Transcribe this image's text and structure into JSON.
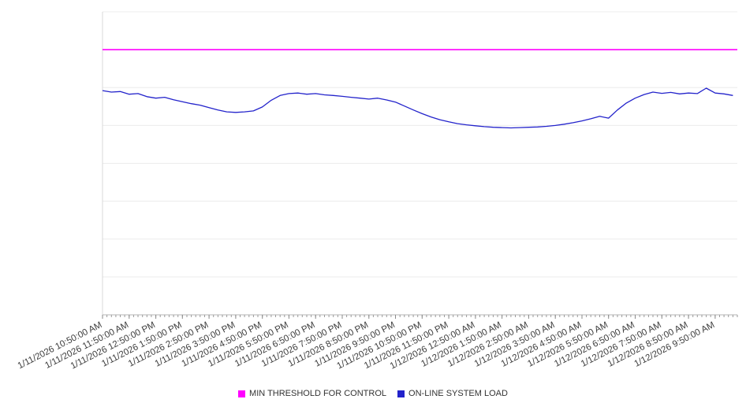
{
  "legend": {
    "position": "bottom",
    "items": [
      {
        "label": "MIN THRESHOLD FOR CONTROL",
        "color": "#ff00ff"
      },
      {
        "label": "ON-LINE SYSTEM LOAD",
        "color": "#2323cb"
      }
    ]
  },
  "chart_data": {
    "type": "line",
    "title": "",
    "xlabel": "",
    "ylabel": "",
    "grid": "horizontal",
    "legend_position": "bottom",
    "x_axis": {
      "range_minutes": [
        0,
        1430
      ],
      "minor_tick_interval_minutes": 10,
      "ticks": [
        {
          "minute": 0,
          "label": "1/11/2026 10:50:00 AM"
        },
        {
          "minute": 60,
          "label": "1/11/2026 11:50:00 AM"
        },
        {
          "minute": 120,
          "label": "1/11/2026 12:50:00 PM"
        },
        {
          "minute": 180,
          "label": "1/11/2026 1:50:00 PM"
        },
        {
          "minute": 240,
          "label": "1/11/2026 2:50:00 PM"
        },
        {
          "minute": 300,
          "label": "1/11/2026 3:50:00 PM"
        },
        {
          "minute": 360,
          "label": "1/11/2026 4:50:00 PM"
        },
        {
          "minute": 420,
          "label": "1/11/2026 5:50:00 PM"
        },
        {
          "minute": 480,
          "label": "1/11/2026 6:50:00 PM"
        },
        {
          "minute": 540,
          "label": "1/11/2026 7:50:00 PM"
        },
        {
          "minute": 600,
          "label": "1/11/2026 8:50:00 PM"
        },
        {
          "minute": 660,
          "label": "1/11/2026 9:50:00 PM"
        },
        {
          "minute": 720,
          "label": "1/11/2026 10:50:00 PM"
        },
        {
          "minute": 780,
          "label": "1/11/2026 11:50:00 PM"
        },
        {
          "minute": 840,
          "label": "1/12/2026 12:50:00 AM"
        },
        {
          "minute": 900,
          "label": "1/12/2026 1:50:00 AM"
        },
        {
          "minute": 960,
          "label": "1/12/2026 2:50:00 AM"
        },
        {
          "minute": 1020,
          "label": "1/12/2026 3:50:00 AM"
        },
        {
          "minute": 1080,
          "label": "1/12/2026 4:50:00 AM"
        },
        {
          "minute": 1140,
          "label": "1/12/2026 5:50:00 AM"
        },
        {
          "minute": 1200,
          "label": "1/12/2026 6:50:00 AM"
        },
        {
          "minute": 1260,
          "label": "1/12/2026 7:50:00 AM"
        },
        {
          "minute": 1320,
          "label": "1/12/2026 8:50:00 AM"
        },
        {
          "minute": 1380,
          "label": "1/12/2026 9:50:00 AM"
        }
      ]
    },
    "y_axis": {
      "ylim": [
        0,
        100
      ],
      "gridline_interval": 12.5,
      "tick_labels_visible": false
    },
    "series": [
      {
        "name": "MIN THRESHOLD FOR CONTROL",
        "color": "#ff00ff",
        "type": "constant",
        "value": 87.5
      },
      {
        "name": "ON-LINE SYSTEM LOAD",
        "color": "#2323cb",
        "type": "sampled",
        "x_start_minute": 0,
        "x_step_minutes": 20,
        "values": [
          74.0,
          73.5,
          73.7,
          72.8,
          73.0,
          72.0,
          71.5,
          71.8,
          71.0,
          70.3,
          69.7,
          69.2,
          68.4,
          67.6,
          67.0,
          66.8,
          67.0,
          67.3,
          68.6,
          70.8,
          72.4,
          73.0,
          73.2,
          72.8,
          73.0,
          72.6,
          72.4,
          72.1,
          71.8,
          71.5,
          71.2,
          71.5,
          70.9,
          70.2,
          68.9,
          67.6,
          66.4,
          65.3,
          64.4,
          63.7,
          63.1,
          62.7,
          62.4,
          62.1,
          61.9,
          61.8,
          61.7,
          61.8,
          61.9,
          62.0,
          62.2,
          62.5,
          62.9,
          63.4,
          64.0,
          64.7,
          65.5,
          64.9,
          67.6,
          69.9,
          71.5,
          72.7,
          73.5,
          73.1,
          73.4,
          72.9,
          73.2,
          73.0,
          74.8,
          73.2,
          72.9,
          72.4
        ]
      }
    ]
  }
}
